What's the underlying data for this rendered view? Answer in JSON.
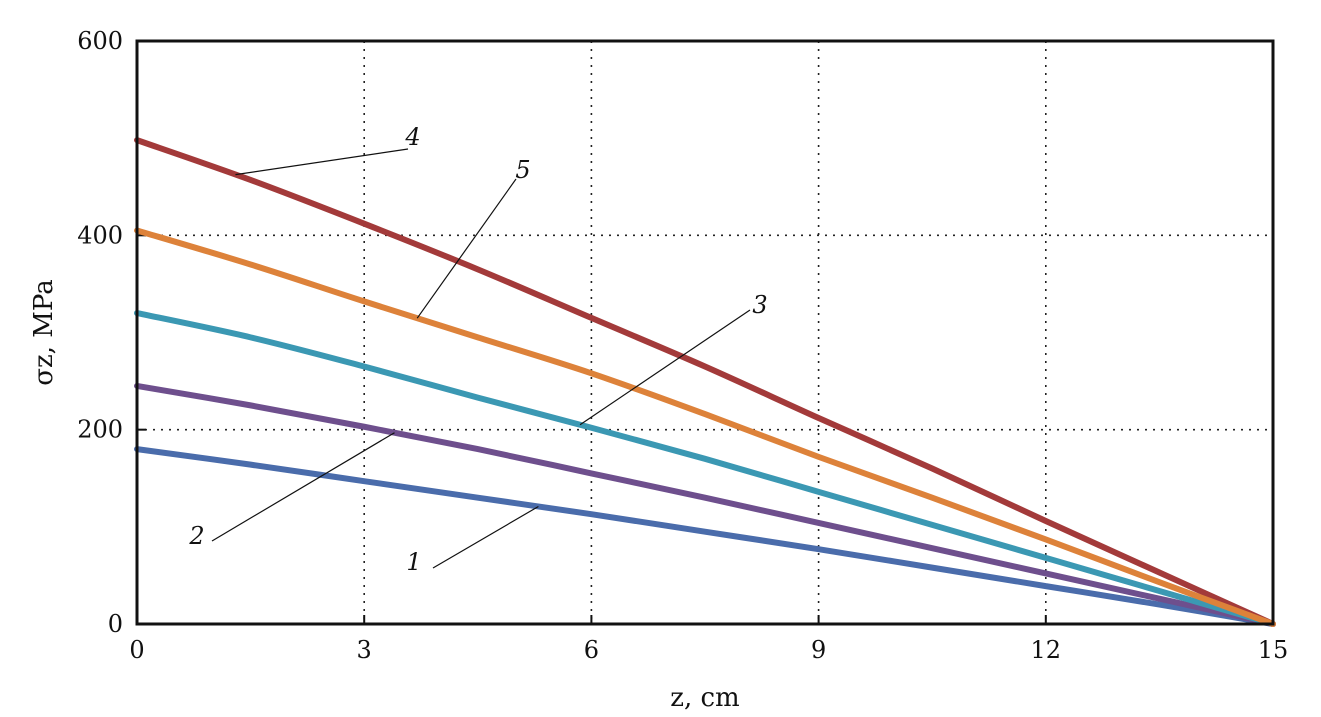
{
  "chart_data": {
    "type": "line",
    "xlabel": "z, cm",
    "ylabel": "σz, MPa",
    "xlim": [
      0,
      15
    ],
    "ylim": [
      0,
      600
    ],
    "xticks": [
      "0",
      "3",
      "6",
      "9",
      "12",
      "15"
    ],
    "yticks": [
      "0",
      "200",
      "400",
      "600"
    ],
    "grid": true,
    "x": [
      0,
      1.5,
      3,
      4.5,
      6,
      7.5,
      9,
      10.5,
      12,
      13.5,
      15
    ],
    "series": [
      {
        "name": "1",
        "color": "#4a6cab",
        "values": [
          180,
          164,
          147,
          130,
          113,
          95,
          77,
          58,
          39,
          20,
          0
        ]
      },
      {
        "name": "2",
        "color": "#6e4f8d",
        "values": [
          245,
          225,
          203,
          180,
          155,
          130,
          104,
          78,
          52,
          26,
          0
        ]
      },
      {
        "name": "3",
        "color": "#3b98b3",
        "values": [
          320,
          295,
          265,
          233,
          202,
          170,
          136,
          102,
          68,
          34,
          0
        ]
      },
      {
        "name": "4",
        "color": "#a33a3a",
        "values": [
          498,
          457,
          412,
          365,
          315,
          265,
          212,
          160,
          106,
          53,
          0
        ]
      },
      {
        "name": "5",
        "color": "#dd823a",
        "values": [
          405,
          370,
          332,
          295,
          258,
          216,
          172,
          130,
          87,
          43,
          0
        ]
      }
    ]
  }
}
